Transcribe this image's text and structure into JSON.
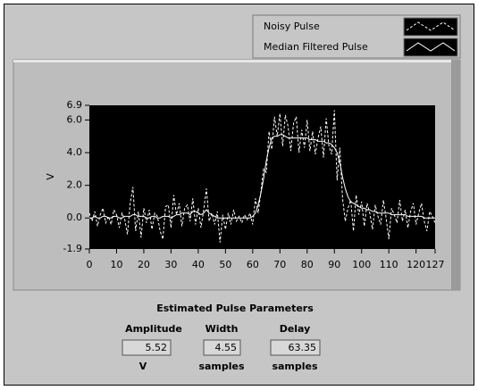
{
  "chart_data": {
    "type": "line",
    "y_label": "V",
    "x": [
      0,
      1,
      2,
      3,
      4,
      5,
      6,
      7,
      8,
      9,
      10,
      11,
      12,
      13,
      14,
      15,
      16,
      17,
      18,
      19,
      20,
      21,
      22,
      23,
      24,
      25,
      26,
      27,
      28,
      29,
      30,
      31,
      32,
      33,
      34,
      35,
      36,
      37,
      38,
      39,
      40,
      41,
      42,
      43,
      44,
      45,
      46,
      47,
      48,
      49,
      50,
      51,
      52,
      53,
      54,
      55,
      56,
      57,
      58,
      59,
      60,
      61,
      62,
      63,
      64,
      65,
      66,
      67,
      68,
      69,
      70,
      71,
      72,
      73,
      74,
      75,
      76,
      77,
      78,
      79,
      80,
      81,
      82,
      83,
      84,
      85,
      86,
      87,
      88,
      89,
      90,
      91,
      92,
      93,
      94,
      95,
      96,
      97,
      98,
      99,
      100,
      101,
      102,
      103,
      104,
      105,
      106,
      107,
      108,
      109,
      110,
      111,
      112,
      113,
      114,
      115,
      116,
      117,
      118,
      119,
      120,
      121,
      122,
      123,
      124,
      125,
      126,
      127
    ],
    "series": [
      {
        "name": "Noisy Pulse",
        "color": "#ffffff",
        "line_style": "dashed",
        "values": [
          0.3,
          -0.2,
          0.4,
          -0.5,
          0.2,
          0.6,
          -0.3,
          0.1,
          -0.4,
          0.5,
          0.2,
          -0.6,
          0.3,
          -0.1,
          -1.0,
          0.9,
          1.9,
          -0.8,
          0.4,
          -1.2,
          0.6,
          -0.3,
          0.5,
          -0.7,
          0.3,
          0.1,
          -0.8,
          -1.3,
          0.7,
          0.8,
          -0.6,
          1.4,
          0.2,
          0.9,
          -0.5,
          0.6,
          0.8,
          -0.2,
          1.2,
          -0.4,
          0.6,
          -0.6,
          0.5,
          1.8,
          -0.2,
          0.3,
          -0.4,
          0.4,
          -1.5,
          0.2,
          -0.7,
          0.3,
          -0.4,
          0.5,
          -0.2,
          0.1,
          -0.3,
          0.2,
          -0.1,
          0.3,
          -0.4,
          1.2,
          0.3,
          1.6,
          3.0,
          2.8,
          5.3,
          4.2,
          6.2,
          5.0,
          6.4,
          4.4,
          6.3,
          5.6,
          4.1,
          5.8,
          6.2,
          4.0,
          5.4,
          4.3,
          6.0,
          4.1,
          5.3,
          3.9,
          4.9,
          5.6,
          3.7,
          6.1,
          4.4,
          3.9,
          6.6,
          2.3,
          4.3,
          1.2,
          -0.2,
          0.6,
          1.1,
          -0.8,
          1.4,
          0.2,
          1.0,
          -0.5,
          0.9,
          0.3,
          -0.7,
          0.8,
          0.1,
          -0.4,
          1.1,
          0.0,
          -1.3,
          0.6,
          0.2,
          -0.3,
          1.1,
          -0.2,
          0.5,
          -0.6,
          0.4,
          0.9,
          -0.4,
          0.3,
          0.9,
          -0.2,
          -0.8,
          0.4,
          0.1,
          -0.3
        ]
      },
      {
        "name": "Median Filtered Pulse",
        "color": "#ffffff",
        "line_style": "solid",
        "values": [
          0.0,
          0.0,
          0.1,
          0.0,
          0.0,
          0.1,
          0.1,
          0.0,
          0.0,
          0.1,
          0.1,
          0.0,
          0.0,
          0.1,
          0.1,
          0.1,
          0.2,
          0.2,
          0.1,
          0.1,
          0.1,
          0.0,
          0.0,
          0.1,
          0.1,
          0.0,
          0.0,
          0.1,
          0.1,
          0.1,
          0.0,
          0.1,
          0.2,
          0.2,
          0.3,
          0.3,
          0.3,
          0.2,
          0.4,
          0.4,
          0.3,
          0.2,
          0.3,
          0.5,
          0.3,
          0.2,
          0.1,
          0.0,
          0.0,
          0.0,
          0.0,
          0.0,
          0.0,
          0.0,
          0.0,
          0.0,
          0.0,
          0.0,
          0.0,
          0.0,
          0.1,
          0.3,
          0.8,
          1.5,
          2.4,
          3.5,
          4.3,
          4.9,
          5.0,
          5.0,
          5.1,
          5.1,
          5.0,
          4.9,
          4.9,
          4.9,
          4.9,
          4.9,
          4.9,
          4.9,
          4.9,
          4.8,
          4.8,
          4.8,
          4.7,
          4.7,
          4.7,
          4.6,
          4.6,
          4.5,
          4.3,
          4.0,
          3.4,
          2.5,
          1.8,
          1.3,
          1.0,
          0.9,
          0.8,
          0.7,
          0.6,
          0.6,
          0.5,
          0.5,
          0.4,
          0.4,
          0.3,
          0.3,
          0.3,
          0.3,
          0.3,
          0.2,
          0.2,
          0.2,
          0.2,
          0.2,
          0.2,
          0.1,
          0.1,
          0.1,
          0.1,
          0.1,
          0.1,
          0.0,
          0.0,
          0.0,
          0.0,
          0.0
        ]
      }
    ],
    "xlim": [
      0,
      127
    ],
    "xticks": [
      0,
      10,
      20,
      30,
      40,
      50,
      60,
      70,
      80,
      90,
      100,
      110,
      120,
      127
    ],
    "ylim": [
      -1.9,
      6.9
    ],
    "yticks": [
      -1.9,
      {
        "value": 0,
        "label": "0.0"
      },
      {
        "value": 2,
        "label": "2.0"
      },
      {
        "value": 4,
        "label": "4.0"
      },
      {
        "value": 6,
        "label": "6.0"
      },
      6.9
    ],
    "grid": false,
    "background": "#000000",
    "legend": "top-right"
  },
  "parameters": {
    "title": "Estimated Pulse Parameters",
    "items": [
      {
        "label": "Amplitude",
        "value": "5.52",
        "unit": "V"
      },
      {
        "label": "Width",
        "value": "4.55",
        "unit": "samples"
      },
      {
        "label": "Delay",
        "value": "63.35",
        "unit": "samples"
      }
    ]
  }
}
